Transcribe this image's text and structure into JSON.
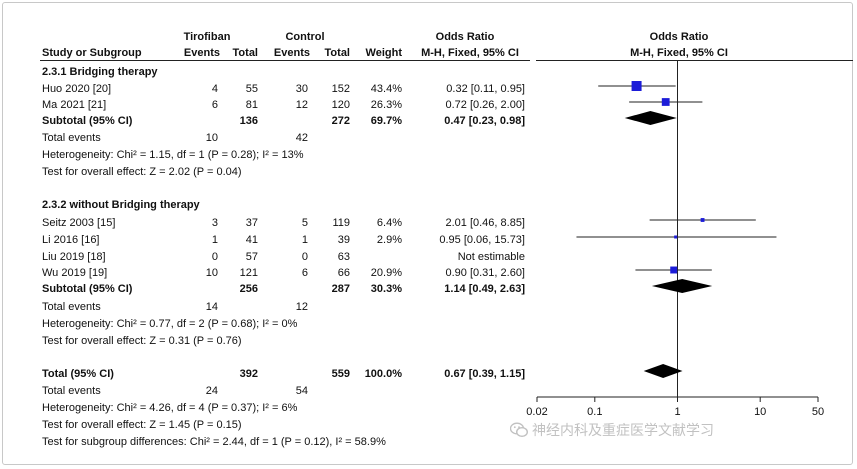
{
  "header": {
    "group1": "Tirofiban",
    "group2": "Control",
    "or_table": "Odds Ratio",
    "or_plot": "Odds Ratio",
    "study": "Study or Subgroup",
    "events1": "Events",
    "total1": "Total",
    "events2": "Events",
    "total2": "Total",
    "weight": "Weight",
    "method_table": "M-H, Fixed, 95% CI",
    "method_plot": "M-H, Fixed, 95% CI"
  },
  "subgroups": [
    {
      "title": "2.3.1 Bridging therapy",
      "studies": [
        {
          "name": "Huo 2020 [20]",
          "e1": "4",
          "t1": "55",
          "e2": "30",
          "t2": "152",
          "weight": "43.4%",
          "ci": "0.32 [0.11, 0.95]"
        },
        {
          "name": "Ma 2021 [21]",
          "e1": "6",
          "t1": "81",
          "e2": "12",
          "t2": "120",
          "weight": "26.3%",
          "ci": "0.72 [0.26, 2.00]"
        }
      ],
      "subtotal": {
        "label": "Subtotal (95% CI)",
        "t1": "136",
        "t2": "272",
        "weight": "69.7%",
        "ci": "0.47 [0.23, 0.98]"
      },
      "events": {
        "label": "Total events",
        "e1": "10",
        "e2": "42"
      },
      "heterogeneity": "Heterogeneity: Chi² = 1.15, df = 1 (P = 0.28); I² = 13%",
      "overall": "Test for overall effect: Z = 2.02 (P = 0.04)"
    },
    {
      "title": "2.3.2 without Bridging therapy",
      "studies": [
        {
          "name": "Seitz 2003 [15]",
          "e1": "3",
          "t1": "37",
          "e2": "5",
          "t2": "119",
          "weight": "6.4%",
          "ci": "2.01 [0.46, 8.85]"
        },
        {
          "name": "Li 2016 [16]",
          "e1": "1",
          "t1": "41",
          "e2": "1",
          "t2": "39",
          "weight": "2.9%",
          "ci": "0.95 [0.06, 15.73]"
        },
        {
          "name": "Liu 2019 [18]",
          "e1": "0",
          "t1": "57",
          "e2": "0",
          "t2": "63",
          "weight": "",
          "ci": "Not estimable"
        },
        {
          "name": "Wu 2019 [19]",
          "e1": "10",
          "t1": "121",
          "e2": "6",
          "t2": "66",
          "weight": "20.9%",
          "ci": "0.90 [0.31, 2.60]"
        }
      ],
      "subtotal": {
        "label": "Subtotal (95% CI)",
        "t1": "256",
        "t2": "287",
        "weight": "30.3%",
        "ci": "1.14 [0.49, 2.63]"
      },
      "events": {
        "label": "Total events",
        "e1": "14",
        "e2": "12"
      },
      "heterogeneity": "Heterogeneity: Chi² = 0.77, df = 2 (P = 0.68); I² = 0%",
      "overall": "Test for overall effect: Z = 0.31 (P = 0.76)"
    }
  ],
  "total": {
    "label": "Total (95% CI)",
    "t1": "392",
    "t2": "559",
    "weight": "100.0%",
    "ci": "0.67 [0.39, 1.15]",
    "events_label": "Total events",
    "e1": "24",
    "e2": "54",
    "heterogeneity": "Heterogeneity: Chi² = 4.26, df = 4 (P = 0.37); I² = 6%",
    "overall": "Test for overall effect: Z = 1.45 (P = 0.15)",
    "subgroup_diff": "Test for subgroup differences: Chi² = 2.44, df = 1 (P = 0.12), I² = 58.9%"
  },
  "watermark": "神经内科及重症医学文献学习",
  "chart_data": {
    "type": "forest",
    "scale": "log",
    "xlim": [
      0.02,
      50
    ],
    "x_ticks": [
      0.02,
      0.1,
      1,
      10,
      50
    ],
    "x_tick_labels": [
      "0.02",
      "0.1",
      "1",
      "10",
      "50"
    ],
    "reference_line": 1,
    "marker_color": "#1c1cd8",
    "studies": [
      {
        "name": "Huo 2020 [20]",
        "or": 0.32,
        "lo": 0.11,
        "hi": 0.95,
        "weight": 43.4
      },
      {
        "name": "Ma 2021 [21]",
        "or": 0.72,
        "lo": 0.26,
        "hi": 2.0,
        "weight": 26.3
      },
      {
        "name": "Seitz 2003 [15]",
        "or": 2.01,
        "lo": 0.46,
        "hi": 8.85,
        "weight": 6.4
      },
      {
        "name": "Li 2016 [16]",
        "or": 0.95,
        "lo": 0.06,
        "hi": 15.73,
        "weight": 2.9
      },
      {
        "name": "Liu 2019 [18]",
        "or": null,
        "lo": null,
        "hi": null,
        "weight": null
      },
      {
        "name": "Wu 2019 [19]",
        "or": 0.9,
        "lo": 0.31,
        "hi": 2.6,
        "weight": 20.9
      }
    ],
    "summaries": [
      {
        "name": "Subtotal 2.3.1",
        "or": 0.47,
        "lo": 0.23,
        "hi": 0.98
      },
      {
        "name": "Subtotal 2.3.2",
        "or": 1.14,
        "lo": 0.49,
        "hi": 2.63
      },
      {
        "name": "Total",
        "or": 0.67,
        "lo": 0.39,
        "hi": 1.15
      }
    ]
  }
}
